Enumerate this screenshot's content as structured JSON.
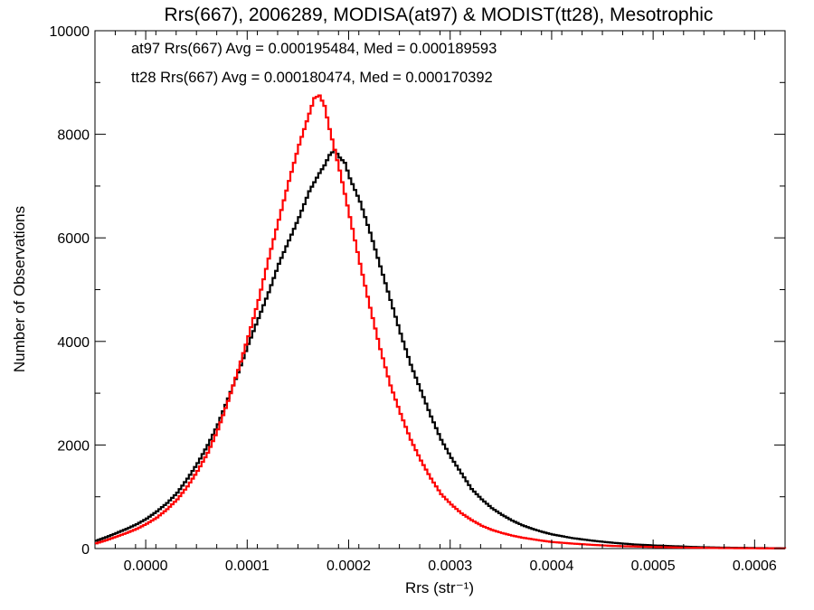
{
  "chart_data": {
    "type": "line",
    "title": "Rrs(667), 2006289, MODISA(at97) & MODIST(tt28), Mesotrophic",
    "xlabel": "Rrs (str⁻¹)",
    "ylabel": "Number of Observations",
    "xlim": [
      -5e-05,
      0.00063
    ],
    "ylim": [
      0,
      10000
    ],
    "x_ticks": [
      0.0,
      0.0001,
      0.0002,
      0.0003,
      0.0004,
      0.0005,
      0.0006
    ],
    "x_tick_labels": [
      "0.0000",
      "0.0001",
      "0.0002",
      "0.0003",
      "0.0004",
      "0.0005",
      "0.0006"
    ],
    "y_ticks": [
      0,
      2000,
      4000,
      6000,
      8000,
      10000
    ],
    "y_tick_labels": [
      "0",
      "2000",
      "4000",
      "6000",
      "8000",
      "10000"
    ],
    "grid": false,
    "step": "histogram",
    "annotations": [
      {
        "text": "at97 Rrs(667) Avg = 0.000195484, Med = 0.000189593",
        "color": "#000000"
      },
      {
        "text": "tt28 Rrs(667) Avg = 0.000180474, Med = 0.000170392",
        "color": "#ff0000"
      }
    ],
    "series": [
      {
        "color": "#000000",
        "points": [
          [
            -5e-05,
            150
          ],
          [
            -4e-05,
            220
          ],
          [
            -3e-05,
            300
          ],
          [
            -2e-05,
            380
          ],
          [
            -1e-05,
            470
          ],
          [
            0.0,
            580
          ],
          [
            1e-05,
            720
          ],
          [
            2e-05,
            880
          ],
          [
            3e-05,
            1080
          ],
          [
            4e-05,
            1350
          ],
          [
            5e-05,
            1650
          ],
          [
            6e-05,
            2000
          ],
          [
            7e-05,
            2400
          ],
          [
            8e-05,
            2900
          ],
          [
            9e-05,
            3400
          ],
          [
            0.0001,
            3950
          ],
          [
            0.00011,
            4450
          ],
          [
            0.00012,
            4950
          ],
          [
            0.00013,
            5500
          ],
          [
            0.00014,
            5950
          ],
          [
            0.00015,
            6400
          ],
          [
            0.00016,
            6900
          ],
          [
            0.00017,
            7250
          ],
          [
            0.000175,
            7400
          ],
          [
            0.00018,
            7600
          ],
          [
            0.000185,
            7700
          ],
          [
            0.00019,
            7550
          ],
          [
            0.000195,
            7450
          ],
          [
            0.0002,
            7150
          ],
          [
            0.00021,
            6700
          ],
          [
            0.00022,
            6100
          ],
          [
            0.00023,
            5450
          ],
          [
            0.00024,
            4800
          ],
          [
            0.00025,
            4150
          ],
          [
            0.00026,
            3550
          ],
          [
            0.00027,
            3050
          ],
          [
            0.00028,
            2550
          ],
          [
            0.00029,
            2100
          ],
          [
            0.0003,
            1750
          ],
          [
            0.00031,
            1450
          ],
          [
            0.00032,
            1150
          ],
          [
            0.00033,
            950
          ],
          [
            0.00034,
            780
          ],
          [
            0.00035,
            650
          ],
          [
            0.00036,
            540
          ],
          [
            0.00037,
            450
          ],
          [
            0.00038,
            380
          ],
          [
            0.00039,
            320
          ],
          [
            0.0004,
            270
          ],
          [
            0.00042,
            200
          ],
          [
            0.00044,
            150
          ],
          [
            0.00046,
            110
          ],
          [
            0.00048,
            80
          ],
          [
            0.0005,
            60
          ],
          [
            0.00052,
            45
          ],
          [
            0.00054,
            30
          ],
          [
            0.00056,
            20
          ],
          [
            0.00058,
            15
          ],
          [
            0.0006,
            10
          ],
          [
            0.00063,
            5
          ]
        ]
      },
      {
        "color": "#ff0000",
        "points": [
          [
            -5e-05,
            100
          ],
          [
            -4e-05,
            160
          ],
          [
            -3e-05,
            230
          ],
          [
            -2e-05,
            300
          ],
          [
            -1e-05,
            380
          ],
          [
            0.0,
            480
          ],
          [
            1e-05,
            600
          ],
          [
            2e-05,
            760
          ],
          [
            3e-05,
            950
          ],
          [
            4e-05,
            1200
          ],
          [
            5e-05,
            1500
          ],
          [
            6e-05,
            1850
          ],
          [
            7e-05,
            2300
          ],
          [
            8e-05,
            2850
          ],
          [
            9e-05,
            3450
          ],
          [
            0.0001,
            4100
          ],
          [
            0.00011,
            4800
          ],
          [
            0.00012,
            5600
          ],
          [
            0.00013,
            6350
          ],
          [
            0.00014,
            7100
          ],
          [
            0.00015,
            7800
          ],
          [
            0.00016,
            8400
          ],
          [
            0.000165,
            8700
          ],
          [
            0.00017,
            8750
          ],
          [
            0.000175,
            8550
          ],
          [
            0.00018,
            8100
          ],
          [
            0.00019,
            7300
          ],
          [
            0.0002,
            6400
          ],
          [
            0.00021,
            5500
          ],
          [
            0.00022,
            4650
          ],
          [
            0.00023,
            3850
          ],
          [
            0.00024,
            3150
          ],
          [
            0.00025,
            2600
          ],
          [
            0.00026,
            2100
          ],
          [
            0.00027,
            1700
          ],
          [
            0.00028,
            1350
          ],
          [
            0.00029,
            1050
          ],
          [
            0.0003,
            850
          ],
          [
            0.00031,
            680
          ],
          [
            0.00032,
            550
          ],
          [
            0.00033,
            440
          ],
          [
            0.00034,
            360
          ],
          [
            0.00035,
            300
          ],
          [
            0.00036,
            250
          ],
          [
            0.00037,
            210
          ],
          [
            0.00038,
            180
          ],
          [
            0.00039,
            150
          ],
          [
            0.0004,
            125
          ],
          [
            0.00042,
            95
          ],
          [
            0.00044,
            70
          ],
          [
            0.00046,
            50
          ],
          [
            0.00048,
            40
          ],
          [
            0.0005,
            30
          ],
          [
            0.00052,
            22
          ],
          [
            0.00054,
            15
          ],
          [
            0.00056,
            10
          ],
          [
            0.00058,
            7
          ],
          [
            0.0006,
            5
          ],
          [
            0.00063,
            3
          ]
        ]
      }
    ]
  }
}
